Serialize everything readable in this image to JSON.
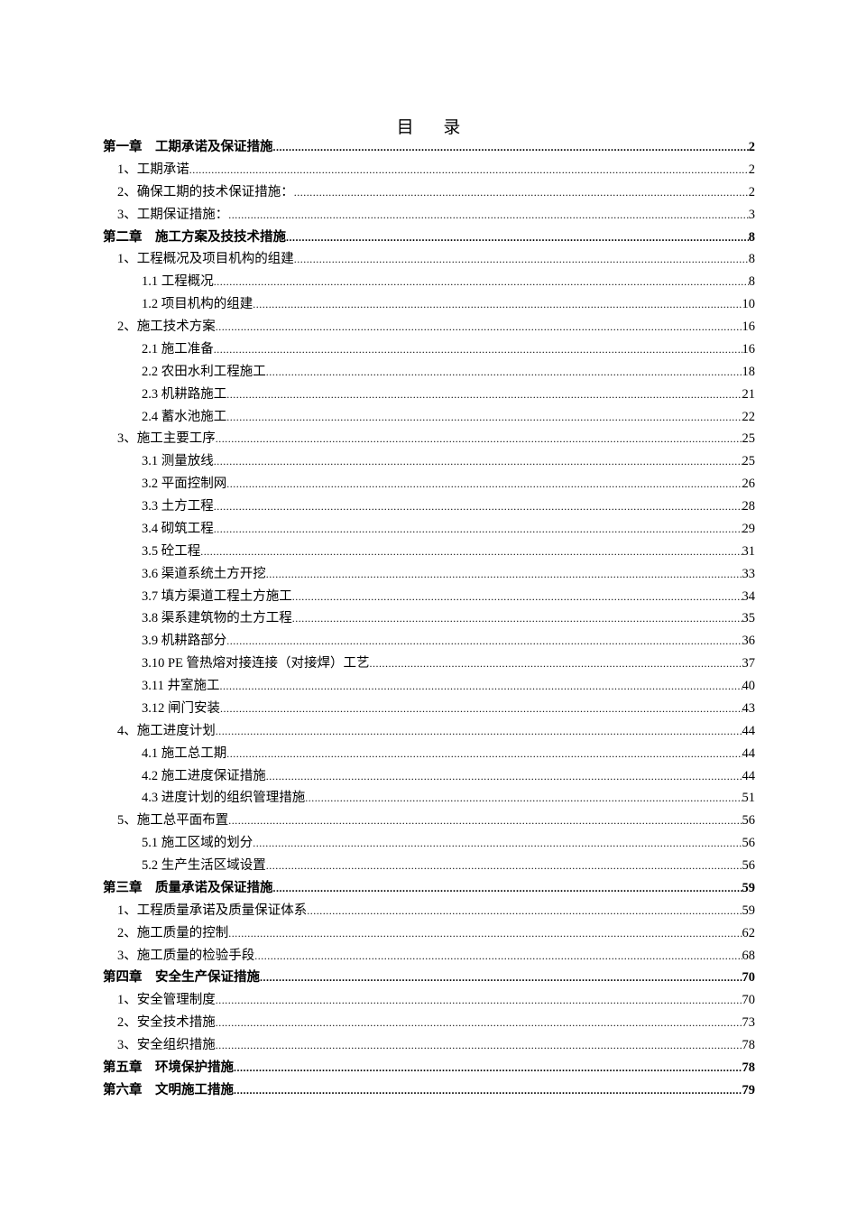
{
  "title": "目 录",
  "entries": [
    {
      "label": "第一章　工期承诺及保证措施",
      "page": "2",
      "level": 0
    },
    {
      "label": "1、工期承诺",
      "page": "2",
      "level": 1
    },
    {
      "label": "2、确保工期的技术保证措施：",
      "page": "2",
      "level": 1
    },
    {
      "label": "3、工期保证措施：",
      "page": "3",
      "level": 1
    },
    {
      "label": "第二章　施工方案及技技术措施",
      "page": "8",
      "level": 0
    },
    {
      "label": "1、工程概况及项目机构的组建",
      "page": "8",
      "level": 1
    },
    {
      "label": "1.1 工程概况",
      "page": "8",
      "level": 2
    },
    {
      "label": "1.2 项目机构的组建",
      "page": "10",
      "level": 2
    },
    {
      "label": "2、施工技术方案",
      "page": "16",
      "level": 1
    },
    {
      "label": "2.1 施工准备",
      "page": "16",
      "level": 2
    },
    {
      "label": "2.2 农田水利工程施工",
      "page": "18",
      "level": 2
    },
    {
      "label": "2.3 机耕路施工",
      "page": "21",
      "level": 2
    },
    {
      "label": "2.4 蓄水池施工",
      "page": "22",
      "level": 2
    },
    {
      "label": "3、施工主要工序",
      "page": "25",
      "level": 1
    },
    {
      "label": "3.1 测量放线",
      "page": "25",
      "level": 2
    },
    {
      "label": "3.2 平面控制网",
      "page": "26",
      "level": 2
    },
    {
      "label": "3.3 土方工程",
      "page": "28",
      "level": 2
    },
    {
      "label": "3.4 砌筑工程",
      "page": "29",
      "level": 2
    },
    {
      "label": "3.5 砼工程",
      "page": "31",
      "level": 2
    },
    {
      "label": "3.6 渠道系统土方开挖",
      "page": "33",
      "level": 2
    },
    {
      "label": "3.7 填方渠道工程土方施工",
      "page": "34",
      "level": 2
    },
    {
      "label": "3.8 渠系建筑物的土方工程",
      "page": "35",
      "level": 2
    },
    {
      "label": "3.9 机耕路部分",
      "page": "36",
      "level": 2
    },
    {
      "label": "3.10 PE 管热熔对接连接（对接焊）工艺",
      "page": "37",
      "level": 2
    },
    {
      "label": "3.11 井室施工",
      "page": "40",
      "level": 2
    },
    {
      "label": "3.12 闸门安装",
      "page": "43",
      "level": 2
    },
    {
      "label": "4、施工进度计划",
      "page": "44",
      "level": 1
    },
    {
      "label": "4.1 施工总工期",
      "page": "44",
      "level": 2
    },
    {
      "label": "4.2 施工进度保证措施",
      "page": "44",
      "level": 2
    },
    {
      "label": "4.3 进度计划的组织管理措施",
      "page": "51",
      "level": 2
    },
    {
      "label": "5、施工总平面布置",
      "page": "56",
      "level": 1
    },
    {
      "label": "5.1 施工区域的划分",
      "page": "56",
      "level": 2
    },
    {
      "label": "5.2 生产生活区域设置",
      "page": "56",
      "level": 2
    },
    {
      "label": "第三章　质量承诺及保证措施",
      "page": "59",
      "level": 0
    },
    {
      "label": "1、工程质量承诺及质量保证体系",
      "page": "59",
      "level": 1
    },
    {
      "label": "2、施工质量的控制",
      "page": "62",
      "level": 1
    },
    {
      "label": "3、施工质量的检验手段",
      "page": "68",
      "level": 1
    },
    {
      "label": "第四章　安全生产保证措施",
      "page": "70",
      "level": 0
    },
    {
      "label": "1、安全管理制度",
      "page": "70",
      "level": 1
    },
    {
      "label": "2、安全技术措施",
      "page": "73",
      "level": 1
    },
    {
      "label": "3、安全组织措施",
      "page": "78",
      "level": 1
    },
    {
      "label": "第五章　环境保护措施",
      "page": "78",
      "level": 0
    },
    {
      "label": "第六章　文明施工措施",
      "page": "79",
      "level": 0
    }
  ]
}
